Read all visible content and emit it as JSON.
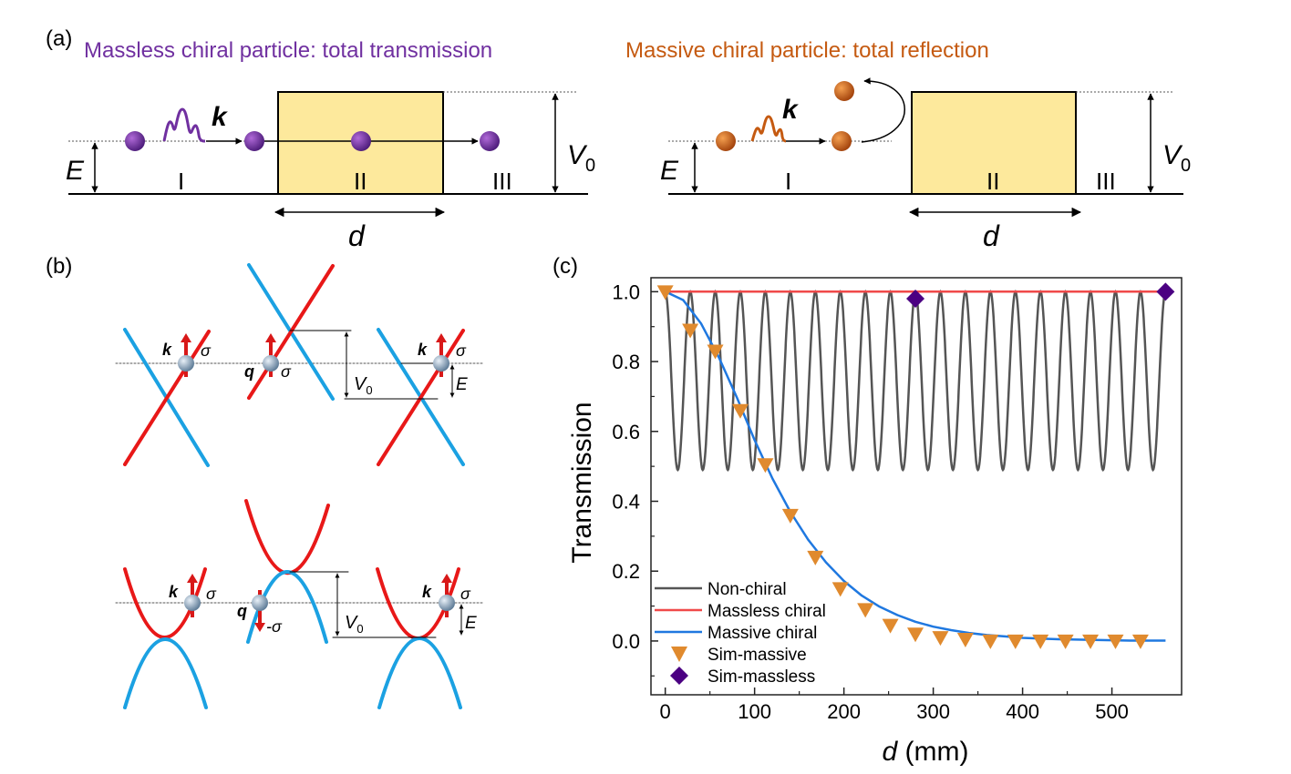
{
  "panel_a": {
    "label": "(a)",
    "left_title": "Massless chiral particle: total transmission",
    "right_title": "Massive chiral particle: total reflection",
    "energy_label": "E",
    "momentum_label": "k",
    "barrier_label": {
      "base": "V",
      "sub": "0"
    },
    "width_label": "d",
    "regions": [
      "I",
      "II",
      "III"
    ],
    "colors": {
      "massless": "#7030a0",
      "massive": "#c55a11",
      "barrier": "#fde99c"
    }
  },
  "panel_b": {
    "label": "(b)",
    "k": "k",
    "q": "q",
    "sigma": "σ",
    "neg_sigma": "-σ",
    "E": "E",
    "V0": {
      "base": "V",
      "sub": "0"
    }
  },
  "panel_c": {
    "label": "(c)"
  },
  "chart_data": {
    "type": "line",
    "title": "",
    "xlabel_var": "d",
    "xlabel_unit": " (mm)",
    "ylabel": "Transmission",
    "xlim": [
      -16,
      578
    ],
    "ylim": [
      -0.154,
      1.04
    ],
    "xticks": [
      0,
      100,
      200,
      300,
      400,
      500
    ],
    "xtick_labels": [
      "0",
      "100",
      "200",
      "300",
      "400",
      "500"
    ],
    "yticks": [
      0.0,
      0.2,
      0.4,
      0.6,
      0.8,
      1.0
    ],
    "ytick_labels": [
      "0.0",
      "0.2",
      "0.4",
      "0.6",
      "0.8",
      "1.0"
    ],
    "grid": false,
    "legend_position": "bottom-left",
    "series": [
      {
        "name": "Non-chiral",
        "kind": "line",
        "color": "#555555",
        "oscillation": {
          "period": 28,
          "min": 0.49,
          "max": 1.0,
          "x_range": [
            0,
            560
          ]
        }
      },
      {
        "name": "Massless chiral",
        "kind": "line",
        "color": "#f04a4a",
        "x": [
          0,
          560
        ],
        "y": [
          1.0,
          1.0
        ]
      },
      {
        "name": "Massive chiral",
        "kind": "line",
        "color": "#1f78e0",
        "x": [
          0,
          20,
          40,
          60,
          80,
          100,
          120,
          140,
          160,
          180,
          200,
          220,
          240,
          260,
          280,
          300,
          320,
          340,
          360,
          380,
          400,
          440,
          480,
          520,
          560
        ],
        "y": [
          1.0,
          0.976,
          0.909,
          0.812,
          0.698,
          0.575,
          0.465,
          0.37,
          0.29,
          0.225,
          0.172,
          0.13,
          0.098,
          0.074,
          0.055,
          0.041,
          0.031,
          0.023,
          0.017,
          0.013,
          0.009,
          0.005,
          0.003,
          0.001,
          0.001
        ]
      },
      {
        "name": "Sim-massive",
        "kind": "marker",
        "marker": "triangle-down",
        "color": "#e08a2e",
        "x": [
          0,
          28,
          56,
          84,
          112,
          140,
          168,
          196,
          224,
          252,
          280,
          308,
          336,
          364,
          392,
          420,
          448,
          476,
          504,
          532
        ],
        "y": [
          1.0,
          0.89,
          0.83,
          0.66,
          0.505,
          0.36,
          0.24,
          0.15,
          0.09,
          0.045,
          0.02,
          0.01,
          0.005,
          0.0,
          0.0,
          0.0,
          0.0,
          0.0,
          0.0,
          0.0
        ]
      },
      {
        "name": "Sim-massless",
        "kind": "marker",
        "marker": "diamond",
        "color": "#4b0082",
        "x": [
          280,
          560
        ],
        "y": [
          0.98,
          1.0
        ]
      }
    ]
  }
}
